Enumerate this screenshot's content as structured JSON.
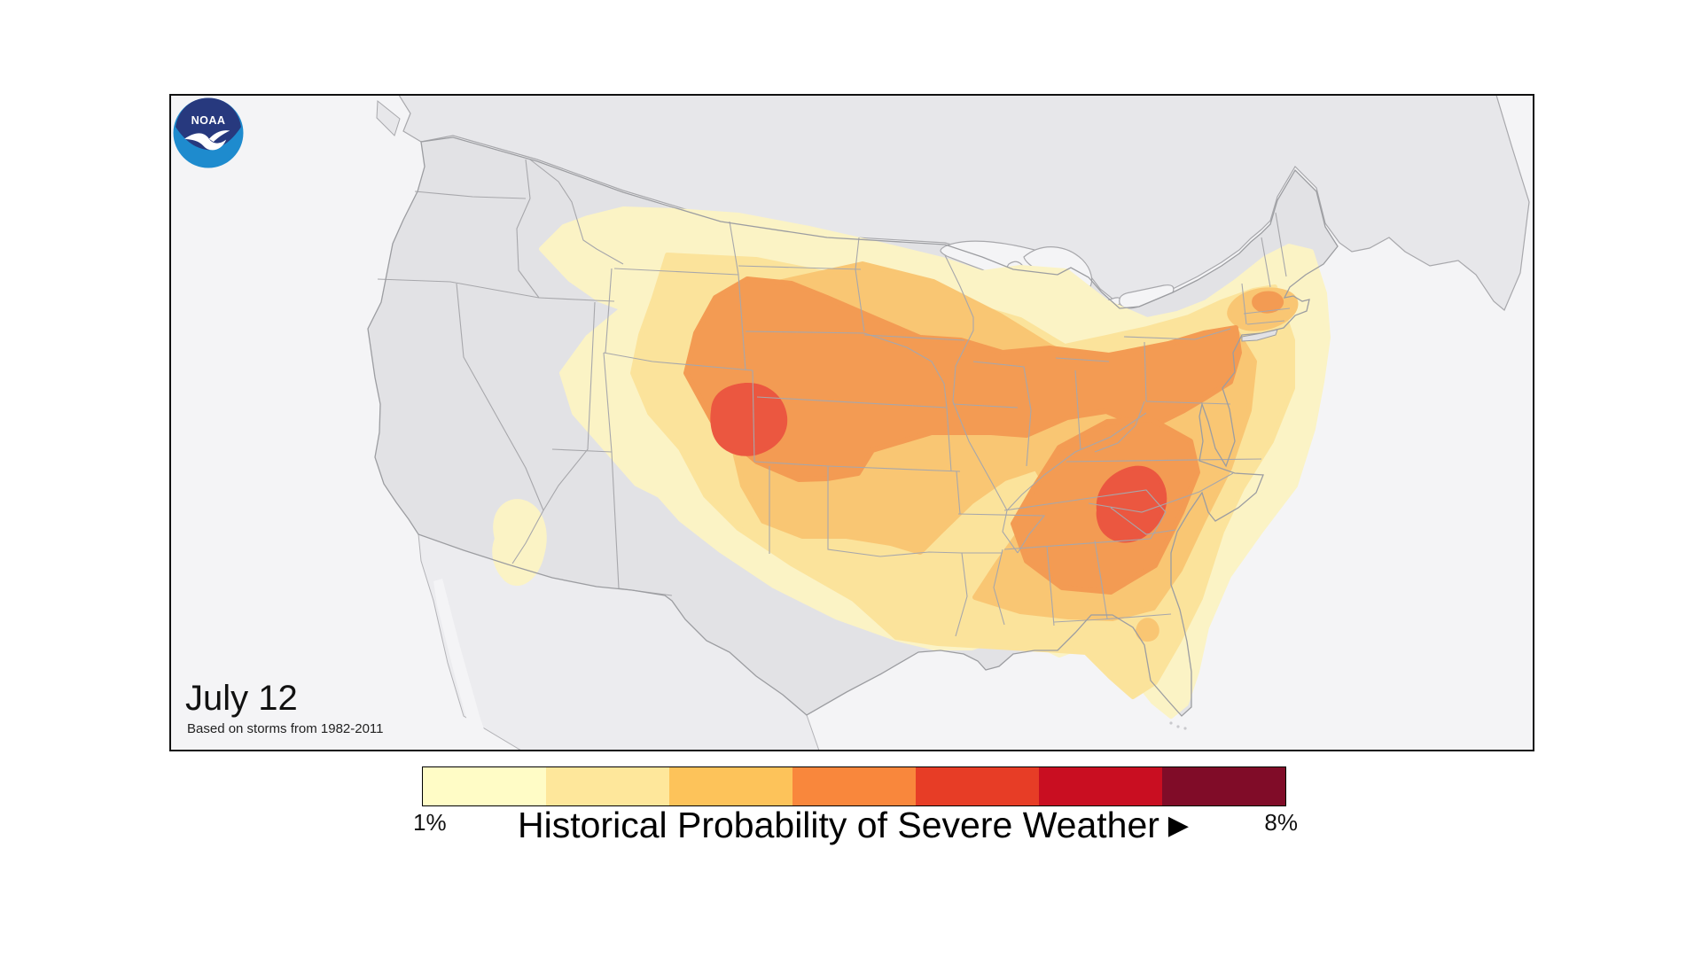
{
  "map_panel": {
    "date_label": "July 12",
    "attribution": "Based on storms from 1982-2011",
    "panel_background": "#F4F4F6",
    "us_fill": "#E2E2E5",
    "neighbor_fill": "#E7E7EA",
    "mexico_fill": "#ECECEF",
    "water_fill": "#F4F4F6",
    "state_border_color": "#A7A7AB",
    "outline_color": "#9C9DA1"
  },
  "map_levels": [
    {
      "name": "probability-level-1",
      "color": "#FBF3C5"
    },
    {
      "name": "probability-level-2",
      "color": "#FBE39B"
    },
    {
      "name": "probability-level-3",
      "color": "#F9C673"
    },
    {
      "name": "probability-level-4",
      "color": "#F39B53"
    },
    {
      "name": "probability-level-5",
      "color": "#EB5740"
    }
  ],
  "legend": {
    "title": "Historical Probability of Severe Weather",
    "arrow_icon": "▶",
    "min_label": "1%",
    "max_label": "8%",
    "colors": [
      "#FFFCC6",
      "#FEE79B",
      "#FDC35A",
      "#F9873C",
      "#E73D26",
      "#C90E21",
      "#800C28"
    ]
  },
  "logo": {
    "text": "NOAA",
    "navy": "#27397E",
    "light_blue": "#1E8BCE"
  }
}
